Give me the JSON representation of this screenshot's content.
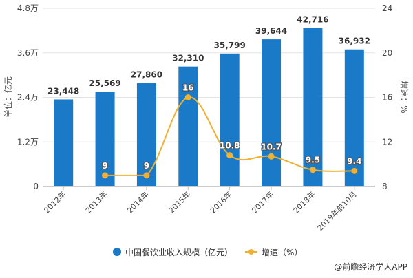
{
  "chart_data": {
    "type": "bar+line",
    "categories": [
      "2012年",
      "2013年",
      "2014年",
      "2015年",
      "2016年",
      "2017年",
      "2018年",
      "2019年前10月"
    ],
    "series": [
      {
        "name": "中国餐饮业收入规模（亿元）",
        "type": "bar",
        "axis": "left",
        "values": [
          23448,
          25569,
          27860,
          32310,
          35799,
          39644,
          42716,
          36932
        ],
        "labels": [
          "23,448",
          "25,569",
          "27,860",
          "32,310",
          "35,799",
          "39,644",
          "42,716",
          "36,932"
        ],
        "color": "#1a7ac8"
      },
      {
        "name": "增速（%）",
        "type": "line",
        "axis": "right",
        "values": [
          null,
          9,
          9,
          16,
          10.8,
          10.7,
          9.5,
          9.4
        ],
        "labels": [
          "",
          "9",
          "9",
          "16",
          "10.8",
          "10.7",
          "9.5",
          "9.4"
        ],
        "color": "#f0b030"
      }
    ],
    "left_axis": {
      "label": "单位：亿元",
      "range": [
        0,
        48000
      ],
      "ticks": [
        0,
        12000,
        24000,
        36000,
        48000
      ],
      "tick_labels": [
        "0",
        "1.2万",
        "2.4万",
        "3.6万",
        "4.8万"
      ]
    },
    "right_axis": {
      "label": "增速：%",
      "range": [
        8,
        24
      ],
      "ticks": [
        8,
        12,
        16,
        20,
        24
      ],
      "tick_labels": [
        "8",
        "12",
        "16",
        "20",
        "24"
      ]
    },
    "grid": true,
    "legend": "bottom"
  },
  "source": "@前瞻经济学人APP"
}
